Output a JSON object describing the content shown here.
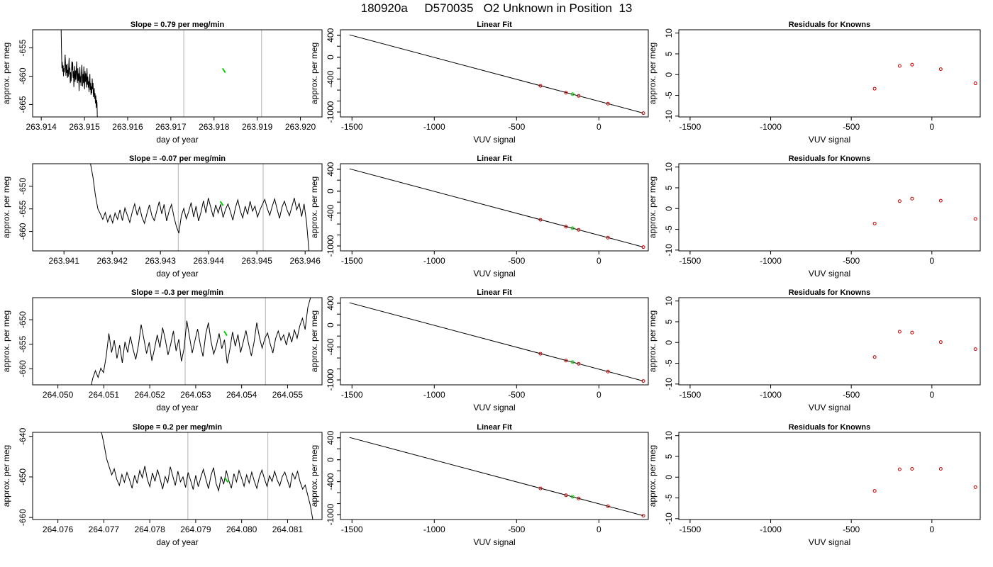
{
  "page_title": "180920a     D570035   O2 Unknown in Position  13",
  "colors": {
    "trace": "#000000",
    "highlight": "#00cc00",
    "knowns": "#cc0000",
    "boundary": "#bebebe"
  },
  "chart_data": [
    {
      "type": "line",
      "row": 0,
      "panel": "time-series",
      "title": "Slope =  0.79  per meg/min",
      "xlabel": "day of year",
      "ylabel": "approx. per meg",
      "xticks": [
        "263.914",
        "263.915",
        "263.916",
        "263.917",
        "263.918",
        "263.919",
        "263.920"
      ],
      "xlim": [
        263.9138,
        263.9205
      ],
      "yticks": [
        "-655",
        "-660",
        "-665"
      ],
      "ytick_values": [
        -655,
        -660,
        -665
      ],
      "ylim": [
        -667.2,
        -651.8
      ],
      "boundaries": [
        263.9173,
        263.9191
      ],
      "highlight": {
        "x": 263.91823,
        "y": -659.0
      },
      "series": [
        {
          "x_start": 263.9153,
          "x_end": 263.91445,
          "values": [
            -668.0,
            -664.8,
            -664.2,
            -665.6,
            -663.4,
            -664.8,
            -663.0,
            -664.0,
            -662.1,
            -662.8,
            -663.7,
            -661.2,
            -662.3,
            -660.4,
            -663.0,
            -661.8,
            -663.3,
            -661.2,
            -662.4,
            -659.6,
            -661.0,
            -662.8,
            -660.9,
            -662.0,
            -660.1,
            -661.5,
            -658.6,
            -660.2,
            -662.0,
            -659.5,
            -661.0,
            -659.1,
            -662.3,
            -660.6,
            -658.3,
            -661.2,
            -659.6,
            -661.8,
            -660.2,
            -658.0,
            -659.4,
            -661.7,
            -660.0,
            -661.1,
            -658.4,
            -660.3,
            -662.6,
            -659.5,
            -660.8,
            -658.6,
            -661.2,
            -659.9,
            -657.4,
            -659.1,
            -660.6,
            -659.0,
            -661.0,
            -658.2,
            -659.7,
            -661.9,
            -659.1,
            -660.3,
            -657.5,
            -658.9,
            -657.4,
            -659.6,
            -660.9,
            -659.3,
            -661.2,
            -658.5,
            -659.7,
            -656.8,
            -658.4,
            -660.1,
            -658.9,
            -660.3,
            -657.8,
            -659.4,
            -658.0,
            -659.9,
            -657.5,
            -656.2,
            -658.2,
            -659.3,
            -658.6,
            -660.0,
            -658.1,
            -659.2,
            -657.5,
            -658.6,
            -655.4,
            -651.0,
            -648.0
          ]
        }
      ]
    },
    {
      "type": "line",
      "row": 0,
      "panel": "linear-fit",
      "title": "Linear Fit",
      "xlabel": "VUV signal",
      "ylabel": "approx. per meg",
      "xticks": [
        "-1500",
        "-1000",
        "-500",
        "0"
      ],
      "xtick_values": [
        -1500,
        -1000,
        -500,
        0
      ],
      "xlim": [
        -1570,
        300
      ],
      "yticks": [
        "400",
        "0",
        "-400",
        "-1000"
      ],
      "ytick_values": [
        400,
        0,
        -400,
        -1000
      ],
      "ylim": [
        -1090,
        500
      ],
      "line": {
        "x": [
          -1515,
          270
        ],
        "y": [
          407,
          -1020
        ]
      },
      "knowns": [
        {
          "x": -355,
          "y": -523
        },
        {
          "x": -200,
          "y": -648
        },
        {
          "x": -123,
          "y": -705
        },
        {
          "x": 55,
          "y": -848
        },
        {
          "x": 270,
          "y": -1020
        }
      ],
      "unknown": {
        "x": -160,
        "y": -675
      }
    },
    {
      "type": "scatter",
      "row": 0,
      "panel": "residuals",
      "title": "Residuals for Knowns",
      "xlabel": "VUV signal",
      "ylabel": "approx. per meg",
      "xticks": [
        "-1500",
        "-1000",
        "-500",
        "0"
      ],
      "xtick_values": [
        -1500,
        -1000,
        -500,
        0
      ],
      "xlim": [
        -1570,
        300
      ],
      "yticks": [
        "10",
        "5",
        "0",
        "-5",
        "-10"
      ],
      "ytick_values": [
        10,
        5,
        0,
        -5,
        -10
      ],
      "ylim": [
        -10.2,
        10.8
      ],
      "points": [
        {
          "x": -355,
          "y": -3.4
        },
        {
          "x": -200,
          "y": 2.1
        },
        {
          "x": -123,
          "y": 2.4
        },
        {
          "x": 55,
          "y": 1.3
        },
        {
          "x": 270,
          "y": -2.1
        }
      ]
    },
    {
      "type": "line",
      "row": 1,
      "panel": "time-series",
      "title": "Slope =  -0.07  per meg/min",
      "xlabel": "day of year",
      "ylabel": "approx. per meg",
      "xticks": [
        "263.941",
        "263.942",
        "263.943",
        "263.944",
        "263.945",
        "263.946"
      ],
      "xlim": [
        263.94035,
        263.94635
      ],
      "yticks": [
        "-650",
        "-655",
        "-660"
      ],
      "ytick_values": [
        -650,
        -655,
        -660
      ],
      "ylim": [
        -664.3,
        -645.0
      ],
      "boundaries": [
        263.94337,
        263.94513
      ],
      "highlight": {
        "x": 263.94427,
        "y": -653.8
      },
      "series": [
        {
          "x_start": 263.94155,
          "x_end": 263.94608,
          "values": [
            -645.0,
            -648.0,
            -652.0,
            -655.0,
            -656.1,
            -657.3,
            -655.8,
            -657.9,
            -656.4,
            -658.1,
            -655.9,
            -657.3,
            -655.2,
            -657.6,
            -654.8,
            -656.4,
            -658.0,
            -655.7,
            -653.9,
            -656.4,
            -654.6,
            -656.9,
            -658.2,
            -656.0,
            -654.1,
            -656.5,
            -657.6,
            -655.4,
            -653.4,
            -656.1,
            -654.0,
            -657.7,
            -655.5,
            -654.0,
            -656.8,
            -658.9,
            -660.4,
            -656.5,
            -654.9,
            -657.2,
            -655.6,
            -653.6,
            -656.8,
            -654.4,
            -657.7,
            -655.7,
            -653.2,
            -655.9,
            -652.6,
            -654.7,
            -656.8,
            -654.1,
            -655.9,
            -654.0,
            -656.9,
            -655.1,
            -653.9,
            -655.6,
            -657.5,
            -654.8,
            -653.0,
            -655.4,
            -657.0,
            -654.4,
            -656.2,
            -653.3,
            -655.5,
            -654.4,
            -656.8,
            -655.3,
            -654.0,
            -652.9,
            -654.9,
            -656.4,
            -654.5,
            -652.8,
            -655.0,
            -657.1,
            -654.6,
            -653.3,
            -655.1,
            -656.5,
            -654.6,
            -652.6,
            -655.2,
            -653.8,
            -656.7,
            -653.9,
            -658.0,
            -664.3
          ]
        }
      ]
    },
    {
      "type": "line",
      "row": 1,
      "panel": "linear-fit",
      "title": "Linear Fit",
      "xlabel": "VUV signal",
      "ylabel": "approx. per meg",
      "xticks": [
        "-1500",
        "-1000",
        "-500",
        "0"
      ],
      "xtick_values": [
        -1500,
        -1000,
        -500,
        0
      ],
      "xlim": [
        -1570,
        300
      ],
      "yticks": [
        "400",
        "0",
        "-400",
        "-1000"
      ],
      "ytick_values": [
        400,
        0,
        -400,
        -1000
      ],
      "ylim": [
        -1090,
        500
      ],
      "line": {
        "x": [
          -1515,
          270
        ],
        "y": [
          407,
          -1020
        ]
      },
      "knowns": [
        {
          "x": -355,
          "y": -523
        },
        {
          "x": -200,
          "y": -648
        },
        {
          "x": -123,
          "y": -705
        },
        {
          "x": 55,
          "y": -848
        },
        {
          "x": 270,
          "y": -1020
        }
      ],
      "unknown": {
        "x": -160,
        "y": -675
      }
    },
    {
      "type": "scatter",
      "row": 1,
      "panel": "residuals",
      "title": "Residuals for Knowns",
      "xlabel": "VUV signal",
      "ylabel": "approx. per meg",
      "xticks": [
        "-1500",
        "-1000",
        "-500",
        "0"
      ],
      "xtick_values": [
        -1500,
        -1000,
        -500,
        0
      ],
      "xlim": [
        -1570,
        300
      ],
      "yticks": [
        "10",
        "5",
        "0",
        "-5",
        "-10"
      ],
      "ytick_values": [
        10,
        5,
        0,
        -5,
        -10
      ],
      "ylim": [
        -10.2,
        10.8
      ],
      "points": [
        {
          "x": -355,
          "y": -3.6
        },
        {
          "x": -200,
          "y": 1.8
        },
        {
          "x": -123,
          "y": 2.4
        },
        {
          "x": 55,
          "y": 1.9
        },
        {
          "x": 270,
          "y": -2.5
        }
      ]
    },
    {
      "type": "line",
      "row": 2,
      "panel": "time-series",
      "title": "Slope =  -0.3  per meg/min",
      "xlabel": "day of year",
      "ylabel": "approx. per meg",
      "xticks": [
        "264.050",
        "264.051",
        "264.052",
        "264.053",
        "264.054",
        "264.055"
      ],
      "xlim": [
        264.04945,
        264.05575
      ],
      "yticks": [
        "-650",
        "-655",
        "-660"
      ],
      "ytick_values": [
        -650,
        -655,
        -660
      ],
      "ylim": [
        -663.3,
        -645.5
      ],
      "boundaries": [
        264.05277,
        264.05452
      ],
      "highlight": {
        "x": 264.05365,
        "y": -652.8
      },
      "series": [
        {
          "x_start": 264.0507,
          "x_end": 264.0555,
          "values": [
            -664.5,
            -662.0,
            -660.4,
            -661.8,
            -659.9,
            -660.8,
            -657.5,
            -652.8,
            -656.7,
            -654.2,
            -657.9,
            -655.2,
            -658.8,
            -654.5,
            -656.7,
            -653.4,
            -656.0,
            -658.1,
            -655.2,
            -651.0,
            -653.9,
            -656.9,
            -654.6,
            -658.4,
            -655.9,
            -653.1,
            -655.7,
            -651.6,
            -654.1,
            -657.2,
            -655.0,
            -652.3,
            -656.4,
            -654.0,
            -658.5,
            -655.8,
            -650.2,
            -653.5,
            -656.8,
            -654.3,
            -651.9,
            -655.1,
            -657.5,
            -653.0,
            -650.6,
            -654.4,
            -657.0,
            -655.3,
            -652.8,
            -655.9,
            -654.1,
            -658.9,
            -656.0,
            -652.5,
            -655.4,
            -653.0,
            -656.7,
            -654.5,
            -652.2,
            -655.0,
            -657.4,
            -654.6,
            -650.6,
            -653.6,
            -655.8,
            -653.8,
            -652.7,
            -654.9,
            -656.8,
            -653.9,
            -652.3,
            -654.2,
            -653.1,
            -655.2,
            -652.6,
            -654.6,
            -652.1,
            -653.8,
            -651.3,
            -649.7,
            -652.0,
            -647.5,
            -645.5
          ]
        }
      ]
    },
    {
      "type": "line",
      "row": 2,
      "panel": "linear-fit",
      "title": "Linear Fit",
      "xlabel": "VUV signal",
      "ylabel": "approx. per meg",
      "xticks": [
        "-1500",
        "-1000",
        "-500",
        "0"
      ],
      "xtick_values": [
        -1500,
        -1000,
        -500,
        0
      ],
      "xlim": [
        -1570,
        300
      ],
      "yticks": [
        "400",
        "0",
        "-400",
        "-1000"
      ],
      "ytick_values": [
        400,
        0,
        -400,
        -1000
      ],
      "ylim": [
        -1090,
        500
      ],
      "line": {
        "x": [
          -1515,
          270
        ],
        "y": [
          407,
          -1020
        ]
      },
      "knowns": [
        {
          "x": -355,
          "y": -523
        },
        {
          "x": -200,
          "y": -648
        },
        {
          "x": -123,
          "y": -705
        },
        {
          "x": 55,
          "y": -848
        },
        {
          "x": 270,
          "y": -1020
        }
      ],
      "unknown": {
        "x": -160,
        "y": -675
      }
    },
    {
      "type": "scatter",
      "row": 2,
      "panel": "residuals",
      "title": "Residuals for Knowns",
      "xlabel": "VUV signal",
      "ylabel": "approx. per meg",
      "xticks": [
        "-1500",
        "-1000",
        "-500",
        "0"
      ],
      "xtick_values": [
        -1500,
        -1000,
        -500,
        0
      ],
      "xlim": [
        -1570,
        300
      ],
      "yticks": [
        "10",
        "5",
        "0",
        "-5",
        "-10"
      ],
      "ytick_values": [
        10,
        5,
        0,
        -5,
        -10
      ],
      "ylim": [
        -10.2,
        10.8
      ],
      "points": [
        {
          "x": -355,
          "y": -3.5
        },
        {
          "x": -200,
          "y": 2.6
        },
        {
          "x": -123,
          "y": 2.4
        },
        {
          "x": 55,
          "y": 0.1
        },
        {
          "x": 270,
          "y": -1.6
        }
      ]
    },
    {
      "type": "line",
      "row": 3,
      "panel": "time-series",
      "title": "Slope =  0.2  per meg/min",
      "xlabel": "day of year",
      "ylabel": "approx. per meg",
      "xticks": [
        "264.076",
        "264.077",
        "264.078",
        "264.079",
        "264.080",
        "264.081"
      ],
      "xlim": [
        264.07545,
        264.08175
      ],
      "yticks": [
        "-640",
        "-650",
        "-660"
      ],
      "ytick_values": [
        -640,
        -650,
        -660
      ],
      "ylim": [
        -660.5,
        -639.0
      ],
      "boundaries": [
        264.07883,
        264.08057
      ],
      "highlight": {
        "x": 264.07967,
        "y": -650.8
      },
      "series": [
        {
          "x_start": 264.07695,
          "x_end": 264.08155,
          "values": [
            -639.0,
            -642.0,
            -645.5,
            -647.5,
            -649.5,
            -648.0,
            -650.6,
            -652.1,
            -649.4,
            -651.3,
            -648.9,
            -650.7,
            -652.8,
            -649.6,
            -651.6,
            -648.4,
            -650.2,
            -647.3,
            -650.6,
            -652.4,
            -649.0,
            -651.1,
            -648.2,
            -650.5,
            -653.0,
            -649.9,
            -651.4,
            -647.5,
            -649.8,
            -652.1,
            -648.6,
            -651.2,
            -650.0,
            -652.6,
            -648.9,
            -650.9,
            -653.1,
            -649.6,
            -652.4,
            -650.1,
            -648.1,
            -650.6,
            -652.9,
            -649.6,
            -647.7,
            -651.6,
            -653.4,
            -649.9,
            -651.8,
            -648.4,
            -650.9,
            -652.8,
            -649.2,
            -651.2,
            -648.4,
            -650.2,
            -652.3,
            -649.5,
            -651.5,
            -648.8,
            -651.0,
            -652.8,
            -650.0,
            -648.3,
            -650.5,
            -652.3,
            -649.7,
            -651.1,
            -648.6,
            -650.7,
            -652.2,
            -649.9,
            -648.8,
            -650.8,
            -652.7,
            -649.1,
            -650.5,
            -648.6,
            -651.2,
            -653.0,
            -652.0,
            -654.5,
            -657.0,
            -660.5
          ]
        }
      ]
    },
    {
      "type": "line",
      "row": 3,
      "panel": "linear-fit",
      "title": "Linear Fit",
      "xlabel": "VUV signal",
      "ylabel": "approx. per meg",
      "xticks": [
        "-1500",
        "-1000",
        "-500",
        "0"
      ],
      "xtick_values": [
        -1500,
        -1000,
        -500,
        0
      ],
      "xlim": [
        -1570,
        300
      ],
      "yticks": [
        "400",
        "0",
        "-400",
        "-1000"
      ],
      "ytick_values": [
        400,
        0,
        -400,
        -1000
      ],
      "ylim": [
        -1090,
        500
      ],
      "line": {
        "x": [
          -1515,
          270
        ],
        "y": [
          407,
          -1020
        ]
      },
      "knowns": [
        {
          "x": -355,
          "y": -523
        },
        {
          "x": -200,
          "y": -648
        },
        {
          "x": -123,
          "y": -705
        },
        {
          "x": 55,
          "y": -848
        },
        {
          "x": 270,
          "y": -1020
        }
      ],
      "unknown": {
        "x": -160,
        "y": -675
      }
    },
    {
      "type": "scatter",
      "row": 3,
      "panel": "residuals",
      "title": "Residuals for Knowns",
      "xlabel": "VUV signal",
      "ylabel": "approx. per meg",
      "xticks": [
        "-1500",
        "-1000",
        "-500",
        "0"
      ],
      "xtick_values": [
        -1500,
        -1000,
        -500,
        0
      ],
      "xlim": [
        -1570,
        300
      ],
      "yticks": [
        "10",
        "5",
        "0",
        "-5",
        "-10"
      ],
      "ytick_values": [
        10,
        5,
        0,
        -5,
        -10
      ],
      "ylim": [
        -10.2,
        10.8
      ],
      "points": [
        {
          "x": -355,
          "y": -3.3
        },
        {
          "x": -200,
          "y": 1.9
        },
        {
          "x": -123,
          "y": 2.0
        },
        {
          "x": 55,
          "y": 2.0
        },
        {
          "x": 270,
          "y": -2.4
        }
      ]
    }
  ]
}
